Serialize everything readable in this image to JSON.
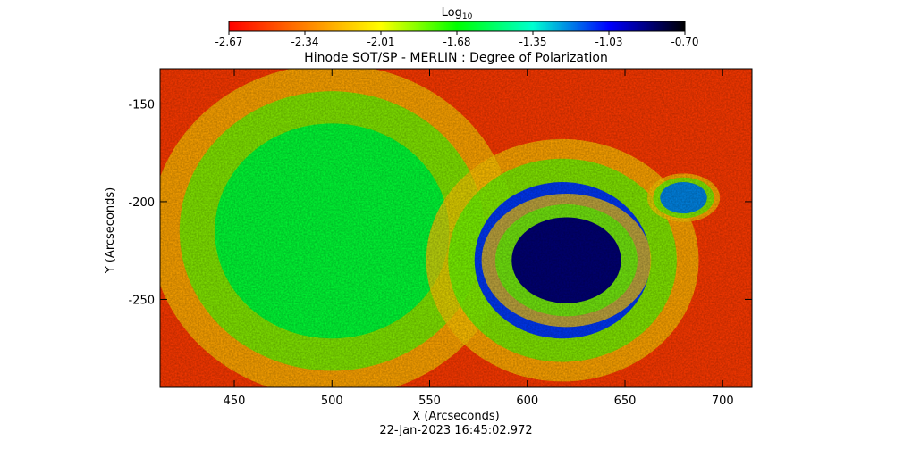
{
  "chart_data": {
    "type": "heatmap",
    "title": "Hinode SOT/SP - MERLIN : Degree of Polarization",
    "xlabel": "X (Arcseconds)",
    "ylabel": "Y (Arcseconds)",
    "timestamp": "22-Jan-2023 16:45:02.972",
    "colorbar": {
      "label_base": "Log",
      "label_sub": "10",
      "range": [
        -2.67,
        -0.7
      ],
      "ticks": [
        "-2.67",
        "-2.34",
        "-2.01",
        "-1.68",
        "-1.35",
        "-1.03",
        "-0.70"
      ],
      "colors": [
        "#ff0000",
        "#ff8000",
        "#ffff00",
        "#00ff00",
        "#00ffd0",
        "#0000ff",
        "#000000"
      ]
    },
    "xlim": [
      412,
      715
    ],
    "ylim": [
      -295,
      -132
    ],
    "x_ticks": [
      450,
      500,
      550,
      600,
      650,
      700
    ],
    "y_ticks": [
      -150,
      -200,
      -250
    ],
    "x_tick_labels": [
      "450",
      "500",
      "550",
      "600",
      "650",
      "700"
    ],
    "y_tick_labels": [
      "-150",
      "-200",
      "-250"
    ],
    "features": [
      {
        "label": "sunspot umbra",
        "x": 620,
        "y": -230,
        "rx": 28,
        "ry": 22,
        "value": -0.85
      },
      {
        "label": "sunspot penumbra",
        "x": 618,
        "y": -230,
        "rx": 45,
        "ry": 40,
        "value": -1.1
      },
      {
        "label": "pore",
        "x": 680,
        "y": -198,
        "rx": 12,
        "ry": 8,
        "value": -1.2
      },
      {
        "label": "network west",
        "x": 500,
        "y": -215,
        "rx": 60,
        "ry": 55,
        "value": -1.6
      }
    ]
  }
}
